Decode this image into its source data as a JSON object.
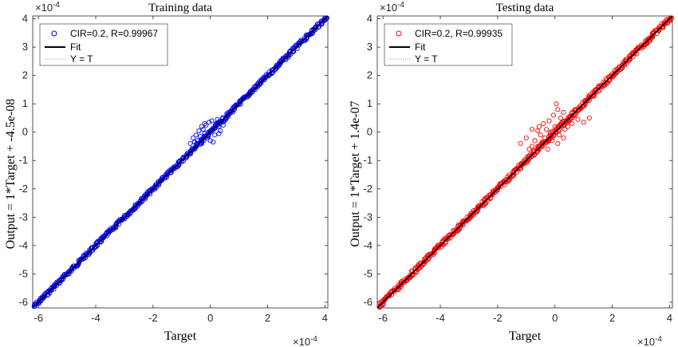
{
  "chart_data": [
    {
      "type": "scatter",
      "title": "Training data",
      "xlabel": "Target",
      "ylabel": "Output  = 1*Target + -4.5e-08",
      "xlim": [
        -6.2,
        4.1
      ],
      "ylim": [
        -6.2,
        4.1
      ],
      "x_exponent_label": "×10",
      "x_exponent_power": "-4",
      "y_exponent_label": "×10",
      "y_exponent_power": "-4",
      "xticks": [
        "-6",
        "-4",
        "-2",
        "0",
        "2",
        "4"
      ],
      "yticks": [
        "-6",
        "-5",
        "-4",
        "-3",
        "-2",
        "-1",
        "0",
        "1",
        "2",
        "3",
        "4"
      ],
      "grid": false,
      "legend_position": "top-left",
      "legend": [
        "CIR=0.2, R=0.99967",
        "Fit",
        "Y = T"
      ],
      "series": [
        {
          "name": "CIR=0.2, R=0.99967",
          "color": "#0000ff",
          "marker": "circle",
          "line_range": [
            -6.15,
            4.05
          ],
          "line_spread": 0.04,
          "cluster_points": [
            [
              -0.7,
              -0.4
            ],
            [
              -0.6,
              -0.2
            ],
            [
              -0.55,
              -0.35
            ],
            [
              -0.5,
              -0.1
            ],
            [
              -0.45,
              -0.3
            ],
            [
              -0.4,
              0.05
            ],
            [
              -0.35,
              -0.15
            ],
            [
              -0.3,
              -0.4
            ],
            [
              -0.25,
              0.1
            ],
            [
              -0.2,
              -0.05
            ],
            [
              -0.15,
              0.25
            ],
            [
              -0.1,
              -0.2
            ],
            [
              -0.05,
              0.35
            ],
            [
              0.0,
              -0.3
            ],
            [
              0.05,
              0.4
            ],
            [
              0.1,
              0.1
            ],
            [
              0.15,
              -0.1
            ],
            [
              0.2,
              0.3
            ],
            [
              0.25,
              0.45
            ],
            [
              0.3,
              0.2
            ],
            [
              0.35,
              0.05
            ],
            [
              0.4,
              0.35
            ],
            [
              0.45,
              0.25
            ],
            [
              0.5,
              0.4
            ],
            [
              -0.2,
              0.3
            ],
            [
              0.1,
              -0.35
            ],
            [
              -0.3,
              0.2
            ],
            [
              0.3,
              -0.05
            ]
          ]
        },
        {
          "name": "Fit",
          "color": "#000000",
          "line": [
            [
              -6.2,
              -6.2
            ],
            [
              4.1,
              4.1
            ]
          ]
        },
        {
          "name": "Y = T",
          "color": "#999999",
          "line": [
            [
              -6.2,
              -6.2
            ],
            [
              4.1,
              4.1
            ]
          ]
        }
      ]
    },
    {
      "type": "scatter",
      "title": "Testing data",
      "xlabel": "Target",
      "ylabel": "Output  = 1*Target + 1.4e-07",
      "xlim": [
        -6.2,
        4.1
      ],
      "ylim": [
        -6.2,
        4.1
      ],
      "x_exponent_label": "×10",
      "x_exponent_power": "-4",
      "y_exponent_label": "×10",
      "y_exponent_power": "-4",
      "xticks": [
        "-6",
        "-4",
        "-2",
        "0",
        "2",
        "4"
      ],
      "yticks": [
        "-6",
        "-5",
        "-4",
        "-3",
        "-2",
        "-1",
        "0",
        "1",
        "2",
        "3",
        "4"
      ],
      "grid": false,
      "legend_position": "top-left",
      "legend": [
        "CIR=0.2, R=0.99935",
        "Fit",
        "Y = T"
      ],
      "series": [
        {
          "name": "CIR=0.2, R=0.99935",
          "color": "#ff0000",
          "marker": "circle",
          "line_range": [
            -6.15,
            4.05
          ],
          "line_spread": 0.05,
          "cluster_points": [
            [
              -1.2,
              -0.4
            ],
            [
              -1.0,
              -0.2
            ],
            [
              -0.9,
              -0.6
            ],
            [
              -0.8,
              0.1
            ],
            [
              -0.7,
              -0.3
            ],
            [
              -0.6,
              -0.5
            ],
            [
              -0.55,
              0.2
            ],
            [
              -0.5,
              -0.1
            ],
            [
              -0.45,
              -0.4
            ],
            [
              -0.4,
              0.3
            ],
            [
              -0.35,
              -0.2
            ],
            [
              -0.3,
              0.1
            ],
            [
              -0.25,
              -0.6
            ],
            [
              -0.2,
              0.4
            ],
            [
              -0.15,
              0.0
            ],
            [
              -0.1,
              -0.3
            ],
            [
              -0.05,
              0.6
            ],
            [
              0.0,
              0.2
            ],
            [
              0.05,
              1.0
            ],
            [
              0.1,
              0.8
            ],
            [
              0.15,
              -0.1
            ],
            [
              0.2,
              0.5
            ],
            [
              0.25,
              0.3
            ],
            [
              0.3,
              0.7
            ],
            [
              0.35,
              0.1
            ],
            [
              0.4,
              0.4
            ],
            [
              0.45,
              0.2
            ],
            [
              0.5,
              0.55
            ],
            [
              0.6,
              0.3
            ],
            [
              0.7,
              0.6
            ],
            [
              0.8,
              0.45
            ],
            [
              1.0,
              0.35
            ],
            [
              1.2,
              0.5
            ],
            [
              -0.6,
              0.05
            ],
            [
              0.3,
              -0.2
            ],
            [
              -0.8,
              -0.5
            ],
            [
              0.1,
              -0.4
            ]
          ]
        },
        {
          "name": "Fit",
          "color": "#000000",
          "line": [
            [
              -6.2,
              -6.2
            ],
            [
              4.1,
              4.1
            ]
          ]
        },
        {
          "name": "Y = T",
          "color": "#999999",
          "line": [
            [
              -6.2,
              -6.2
            ],
            [
              4.1,
              4.1
            ]
          ]
        }
      ]
    }
  ]
}
